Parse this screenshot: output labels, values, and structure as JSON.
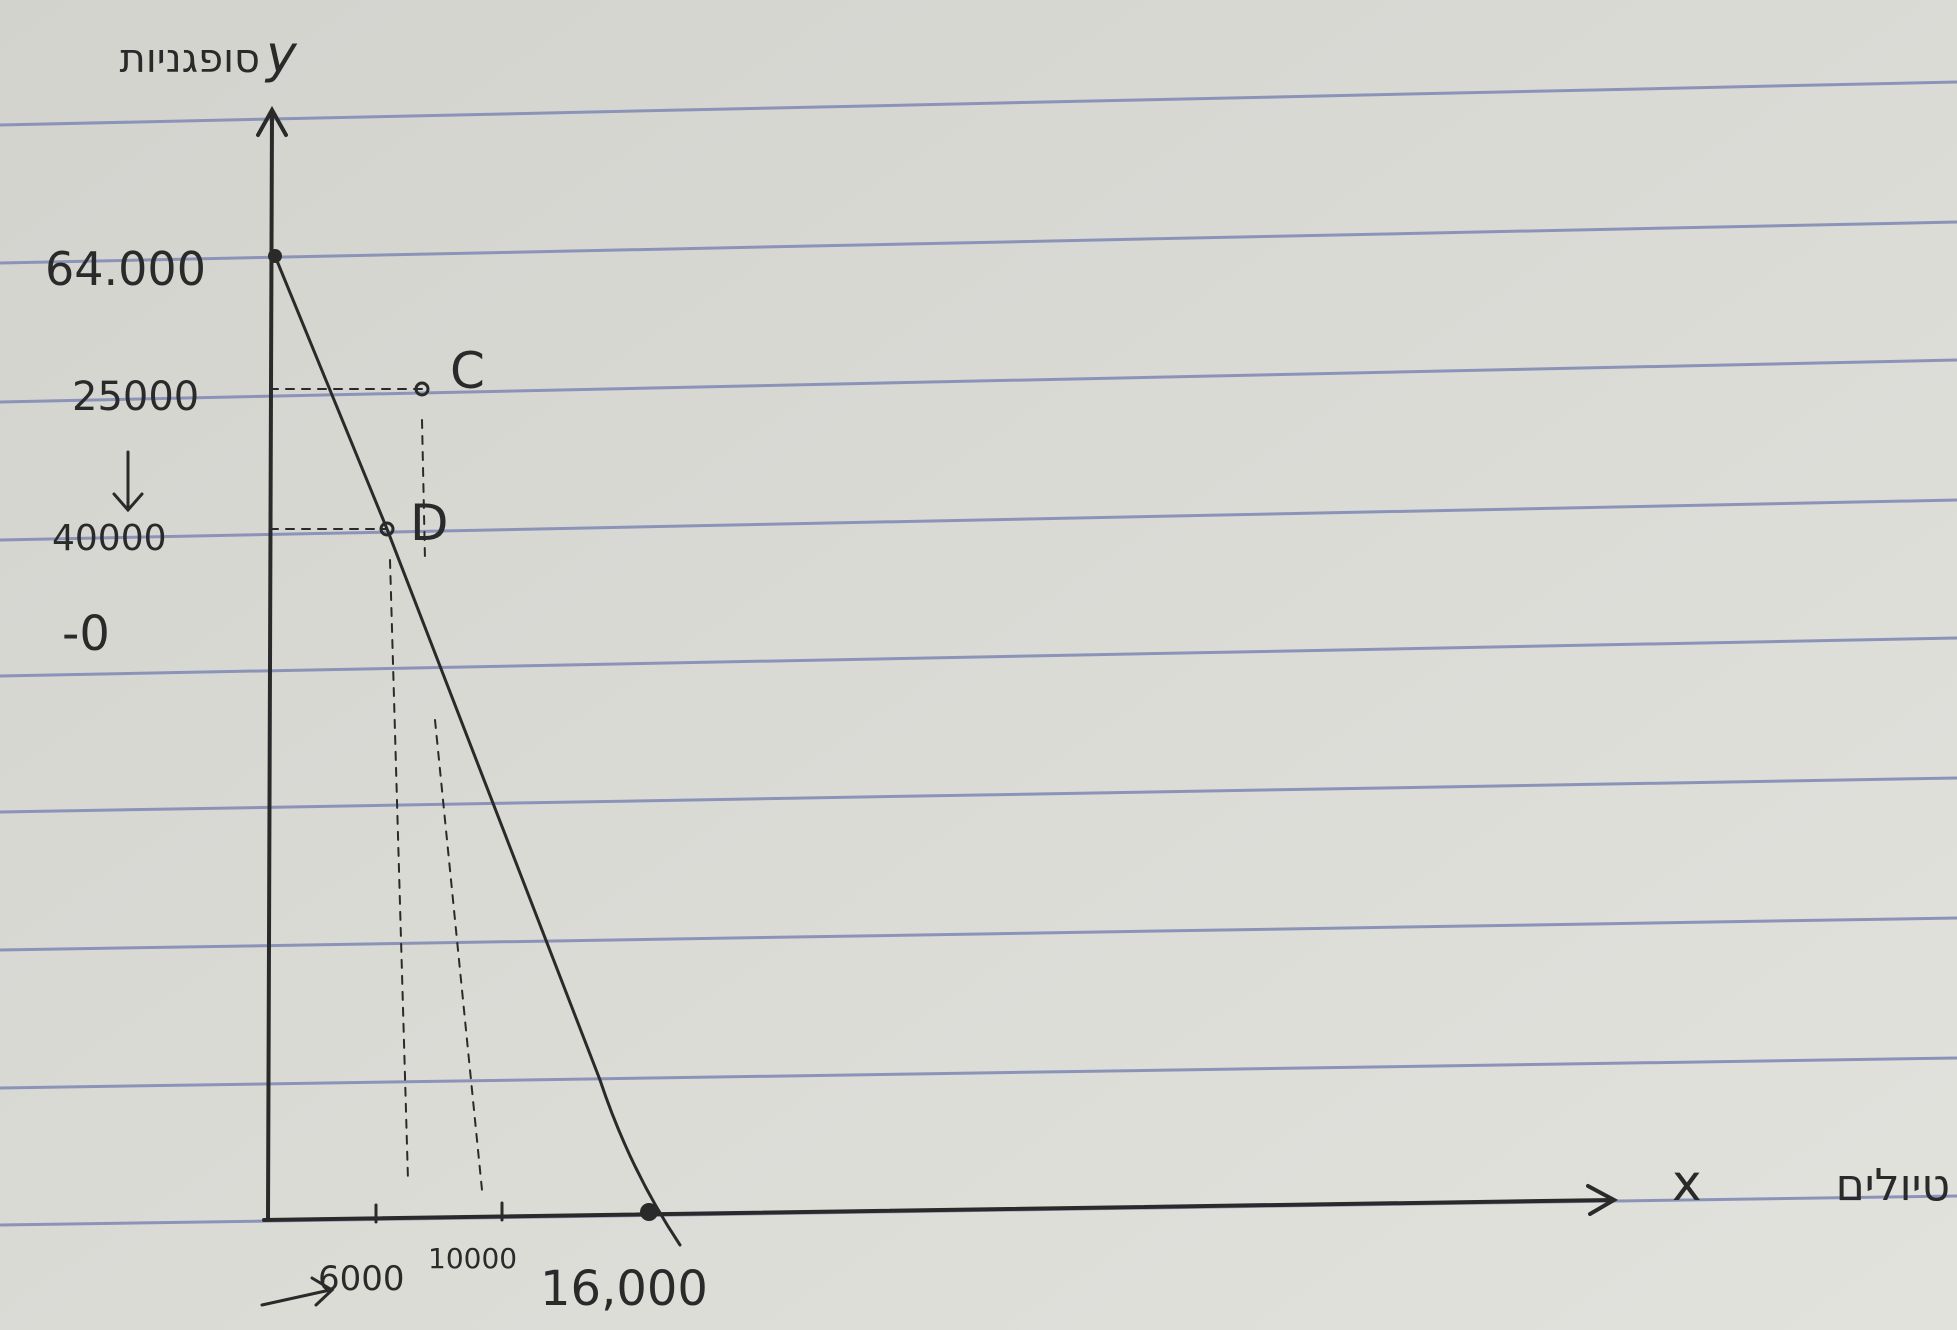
{
  "y_axis": {
    "name": "y",
    "label": "סופגניות",
    "ticks": [
      "64.000",
      "25000",
      "40000",
      "-0"
    ]
  },
  "x_axis": {
    "name": "x",
    "label": "טיולים",
    "ticks": [
      "6000",
      "10000",
      "16,000"
    ]
  },
  "points": [
    {
      "label": "C"
    },
    {
      "label": "D"
    }
  ]
}
